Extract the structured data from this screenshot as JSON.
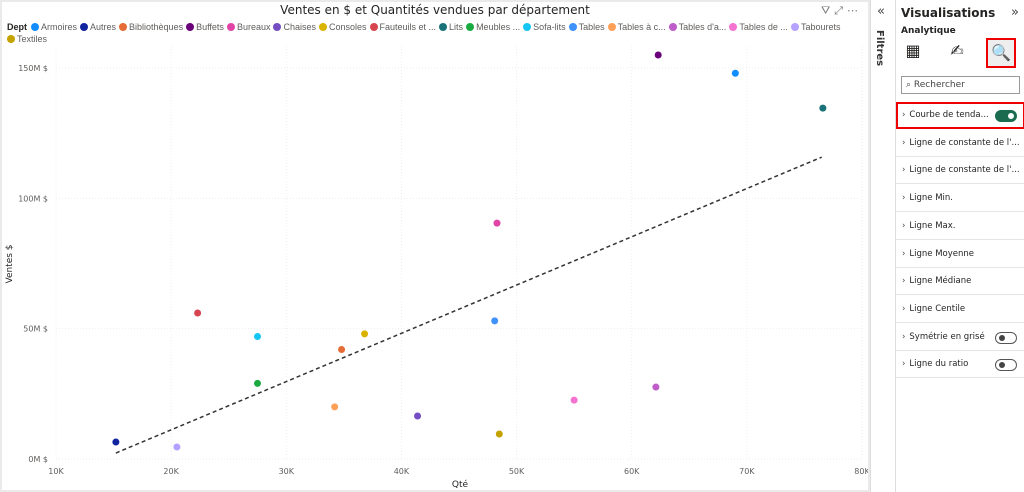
{
  "chart_data": {
    "type": "scatter",
    "title": "Ventes en $ et Quantités vendues par département",
    "xlabel": "Qté",
    "ylabel": "Ventes $",
    "legend_title": "Dept",
    "legend_placement": "top",
    "xlim": [
      10000,
      80000
    ],
    "ylim": [
      0,
      160000000
    ],
    "xticks": [
      {
        "v": 10000,
        "l": "10K"
      },
      {
        "v": 20000,
        "l": "20K"
      },
      {
        "v": 30000,
        "l": "30K"
      },
      {
        "v": 40000,
        "l": "40K"
      },
      {
        "v": 50000,
        "l": "50K"
      },
      {
        "v": 60000,
        "l": "60K"
      },
      {
        "v": 70000,
        "l": "70K"
      },
      {
        "v": 80000,
        "l": "80K"
      }
    ],
    "yticks": [
      {
        "v": 0,
        "l": "0M $"
      },
      {
        "v": 50000000,
        "l": "50M $"
      },
      {
        "v": 100000000,
        "l": "100M $"
      },
      {
        "v": 150000000,
        "l": "150M $"
      }
    ],
    "grid": true,
    "series": [
      {
        "name": "Armoires",
        "color": "#118dff",
        "x": 69000,
        "y": 148000000
      },
      {
        "name": "Autres",
        "color": "#12239e",
        "x": 15200,
        "y": 6500000
      },
      {
        "name": "Bibliothèques",
        "color": "#e66c37",
        "x": 34800,
        "y": 42000000
      },
      {
        "name": "Buffets",
        "color": "#6b007b",
        "x": 62300,
        "y": 155000000
      },
      {
        "name": "Bureaux",
        "color": "#e044a7",
        "x": 48300,
        "y": 90500000
      },
      {
        "name": "Chaises",
        "color": "#744ec2",
        "x": 41400,
        "y": 16500000
      },
      {
        "name": "Consoles",
        "color": "#d9b300",
        "x": 36800,
        "y": 48000000
      },
      {
        "name": "Fauteuils et ...",
        "color": "#d64550",
        "x": 22300,
        "y": 56000000
      },
      {
        "name": "Lits",
        "color": "#197278",
        "x": 76600,
        "y": 134600000
      },
      {
        "name": "Meubles ...",
        "color": "#1aab40",
        "x": 27500,
        "y": 29000000
      },
      {
        "name": "Sofa-lits",
        "color": "#15c6f4",
        "x": 27500,
        "y": 47000000
      },
      {
        "name": "Tables",
        "color": "#4092ff",
        "x": 48100,
        "y": 53000000
      },
      {
        "name": "Tables à c...",
        "color": "#ffa058",
        "x": 34200,
        "y": 20000000
      },
      {
        "name": "Tables d'a...",
        "color": "#be5dc9",
        "x": 62100,
        "y": 27600000
      },
      {
        "name": "Tables de ...",
        "color": "#f472d0",
        "x": 55000,
        "y": 22600000
      },
      {
        "name": "Tabourets",
        "color": "#b5a1ff",
        "x": 20500,
        "y": 4600000
      },
      {
        "name": "Textiles",
        "color": "#c4a200",
        "x": 48500,
        "y": 9600000
      }
    ],
    "trendline": {
      "x": [
        15200,
        76500
      ],
      "y": [
        2300000,
        115800000
      ],
      "style": "dashed"
    }
  },
  "filters": {
    "label": "Filtres"
  },
  "pane": {
    "title": "Visualisations",
    "subtitle": "Analytique",
    "search_placeholder": "Rechercher",
    "items": [
      {
        "label": "Courbe de tenda...",
        "toggle": "on"
      },
      {
        "label": "Ligne de constante de l'..."
      },
      {
        "label": "Ligne de constante de l'..."
      },
      {
        "label": "Ligne Min."
      },
      {
        "label": "Ligne Max."
      },
      {
        "label": "Ligne Moyenne"
      },
      {
        "label": "Ligne Médiane"
      },
      {
        "label": "Ligne Centile"
      },
      {
        "label": "Symétrie en grisé",
        "toggle": "off"
      },
      {
        "label": "Ligne du ratio",
        "toggle": "off"
      }
    ]
  }
}
